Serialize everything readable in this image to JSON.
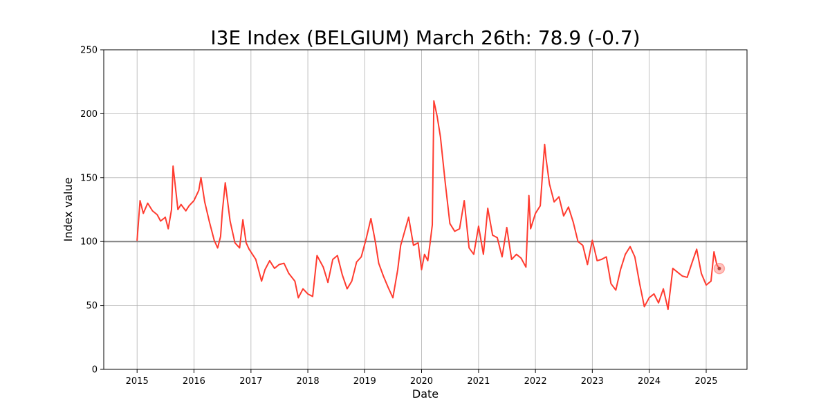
{
  "chart_data": {
    "type": "line",
    "title": "I3E Index (BELGIUM) March 26th: 78.9 (-0.7)",
    "xlabel": "Date",
    "ylabel": "Index value",
    "xlim": [
      "2014-06-01",
      "2025-09-20"
    ],
    "ylim": [
      0,
      250
    ],
    "x_ticks": [
      "2015",
      "2016",
      "2017",
      "2018",
      "2019",
      "2020",
      "2021",
      "2022",
      "2023",
      "2024",
      "2025"
    ],
    "y_ticks": [
      "0",
      "50",
      "100",
      "150",
      "200",
      "250"
    ],
    "grid": true,
    "reference_line": {
      "y": 100,
      "color": "#808080"
    },
    "series": [
      {
        "color": "#ff3b2f",
        "x": [
          "2015-01-01",
          "2015-01-20",
          "2015-02-10",
          "2015-03-10",
          "2015-04-10",
          "2015-05-10",
          "2015-06-01",
          "2015-07-01",
          "2015-07-20",
          "2015-08-10",
          "2015-08-20",
          "2015-09-01",
          "2015-09-20",
          "2015-10-10",
          "2015-11-10",
          "2015-12-01",
          "2016-01-01",
          "2016-02-01",
          "2016-02-15",
          "2016-03-10",
          "2016-04-10",
          "2016-05-10",
          "2016-06-01",
          "2016-06-20",
          "2016-07-01",
          "2016-07-20",
          "2016-08-20",
          "2016-09-20",
          "2016-10-20",
          "2016-11-10",
          "2016-12-01",
          "2016-12-20",
          "2017-02-01",
          "2017-03-10",
          "2017-04-01",
          "2017-05-01",
          "2017-06-01",
          "2017-07-01",
          "2017-08-01",
          "2017-09-01",
          "2017-10-10",
          "2017-11-01",
          "2017-12-01",
          "2018-01-01",
          "2018-02-01",
          "2018-03-01",
          "2018-04-10",
          "2018-05-10",
          "2018-06-10",
          "2018-07-10",
          "2018-08-10",
          "2018-09-10",
          "2018-10-10",
          "2018-11-10",
          "2018-12-10",
          "2019-01-10",
          "2019-02-10",
          "2019-03-10",
          "2019-04-01",
          "2019-05-01",
          "2019-06-01",
          "2019-07-01",
          "2019-08-01",
          "2019-08-20",
          "2019-09-10",
          "2019-10-10",
          "2019-11-10",
          "2019-12-10",
          "2020-01-01",
          "2020-01-20",
          "2020-02-10",
          "2020-02-25",
          "2020-03-10",
          "2020-03-20",
          "2020-04-10",
          "2020-05-01",
          "2020-06-01",
          "2020-07-01",
          "2020-08-01",
          "2020-09-01",
          "2020-10-01",
          "2020-11-01",
          "2020-12-01",
          "2021-01-01",
          "2021-02-01",
          "2021-03-01",
          "2021-04-01",
          "2021-05-01",
          "2021-06-01",
          "2021-07-01",
          "2021-08-01",
          "2021-09-01",
          "2021-10-01",
          "2021-11-01",
          "2021-11-20",
          "2021-12-01",
          "2022-01-01",
          "2022-02-01",
          "2022-03-01",
          "2022-03-10",
          "2022-04-01",
          "2022-05-01",
          "2022-06-01",
          "2022-07-01",
          "2022-08-01",
          "2022-09-01",
          "2022-10-01",
          "2022-11-01",
          "2022-12-01",
          "2023-01-01",
          "2023-02-01",
          "2023-03-01",
          "2023-04-01",
          "2023-05-01",
          "2023-06-01",
          "2023-07-01",
          "2023-08-01",
          "2023-09-01",
          "2023-10-01",
          "2023-11-01",
          "2023-12-01",
          "2024-01-01",
          "2024-02-01",
          "2024-03-01",
          "2024-04-01",
          "2024-05-01",
          "2024-06-01",
          "2024-07-01",
          "2024-08-01",
          "2024-09-01",
          "2024-10-01",
          "2024-11-01",
          "2024-12-01",
          "2025-01-01",
          "2025-02-01",
          "2025-02-20",
          "2025-03-10",
          "2025-03-26"
        ],
        "y": [
          101,
          132,
          122,
          130,
          124,
          121,
          116,
          119,
          110,
          125,
          159,
          146,
          125,
          129,
          124,
          128,
          132,
          140,
          150,
          131,
          115,
          101,
          95,
          104,
          123,
          146,
          116,
          99,
          95,
          117,
          99,
          94,
          86,
          69,
          78,
          85,
          79,
          82,
          83,
          75,
          69,
          56,
          63,
          59,
          57,
          89,
          80,
          68,
          86,
          89,
          74,
          63,
          69,
          84,
          88,
          102,
          118,
          100,
          83,
          73,
          64,
          56,
          78,
          97,
          106,
          119,
          97,
          99,
          78,
          90,
          85,
          99,
          113,
          210,
          198,
          182,
          146,
          114,
          108,
          110,
          132,
          95,
          90,
          112,
          90,
          126,
          105,
          103,
          88,
          111,
          86,
          90,
          87,
          80,
          136,
          110,
          122,
          128,
          176,
          165,
          145,
          131,
          135,
          120,
          127,
          115,
          100,
          97,
          82,
          101,
          85,
          86,
          88,
          67,
          62,
          78,
          90,
          96,
          88,
          67,
          49,
          56,
          59,
          52,
          63,
          47,
          79,
          76,
          73,
          72,
          83,
          94,
          75,
          66,
          69,
          92,
          82,
          78.9
        ]
      }
    ],
    "last_point": {
      "x": "2025-03-26",
      "y": 78.9
    }
  }
}
